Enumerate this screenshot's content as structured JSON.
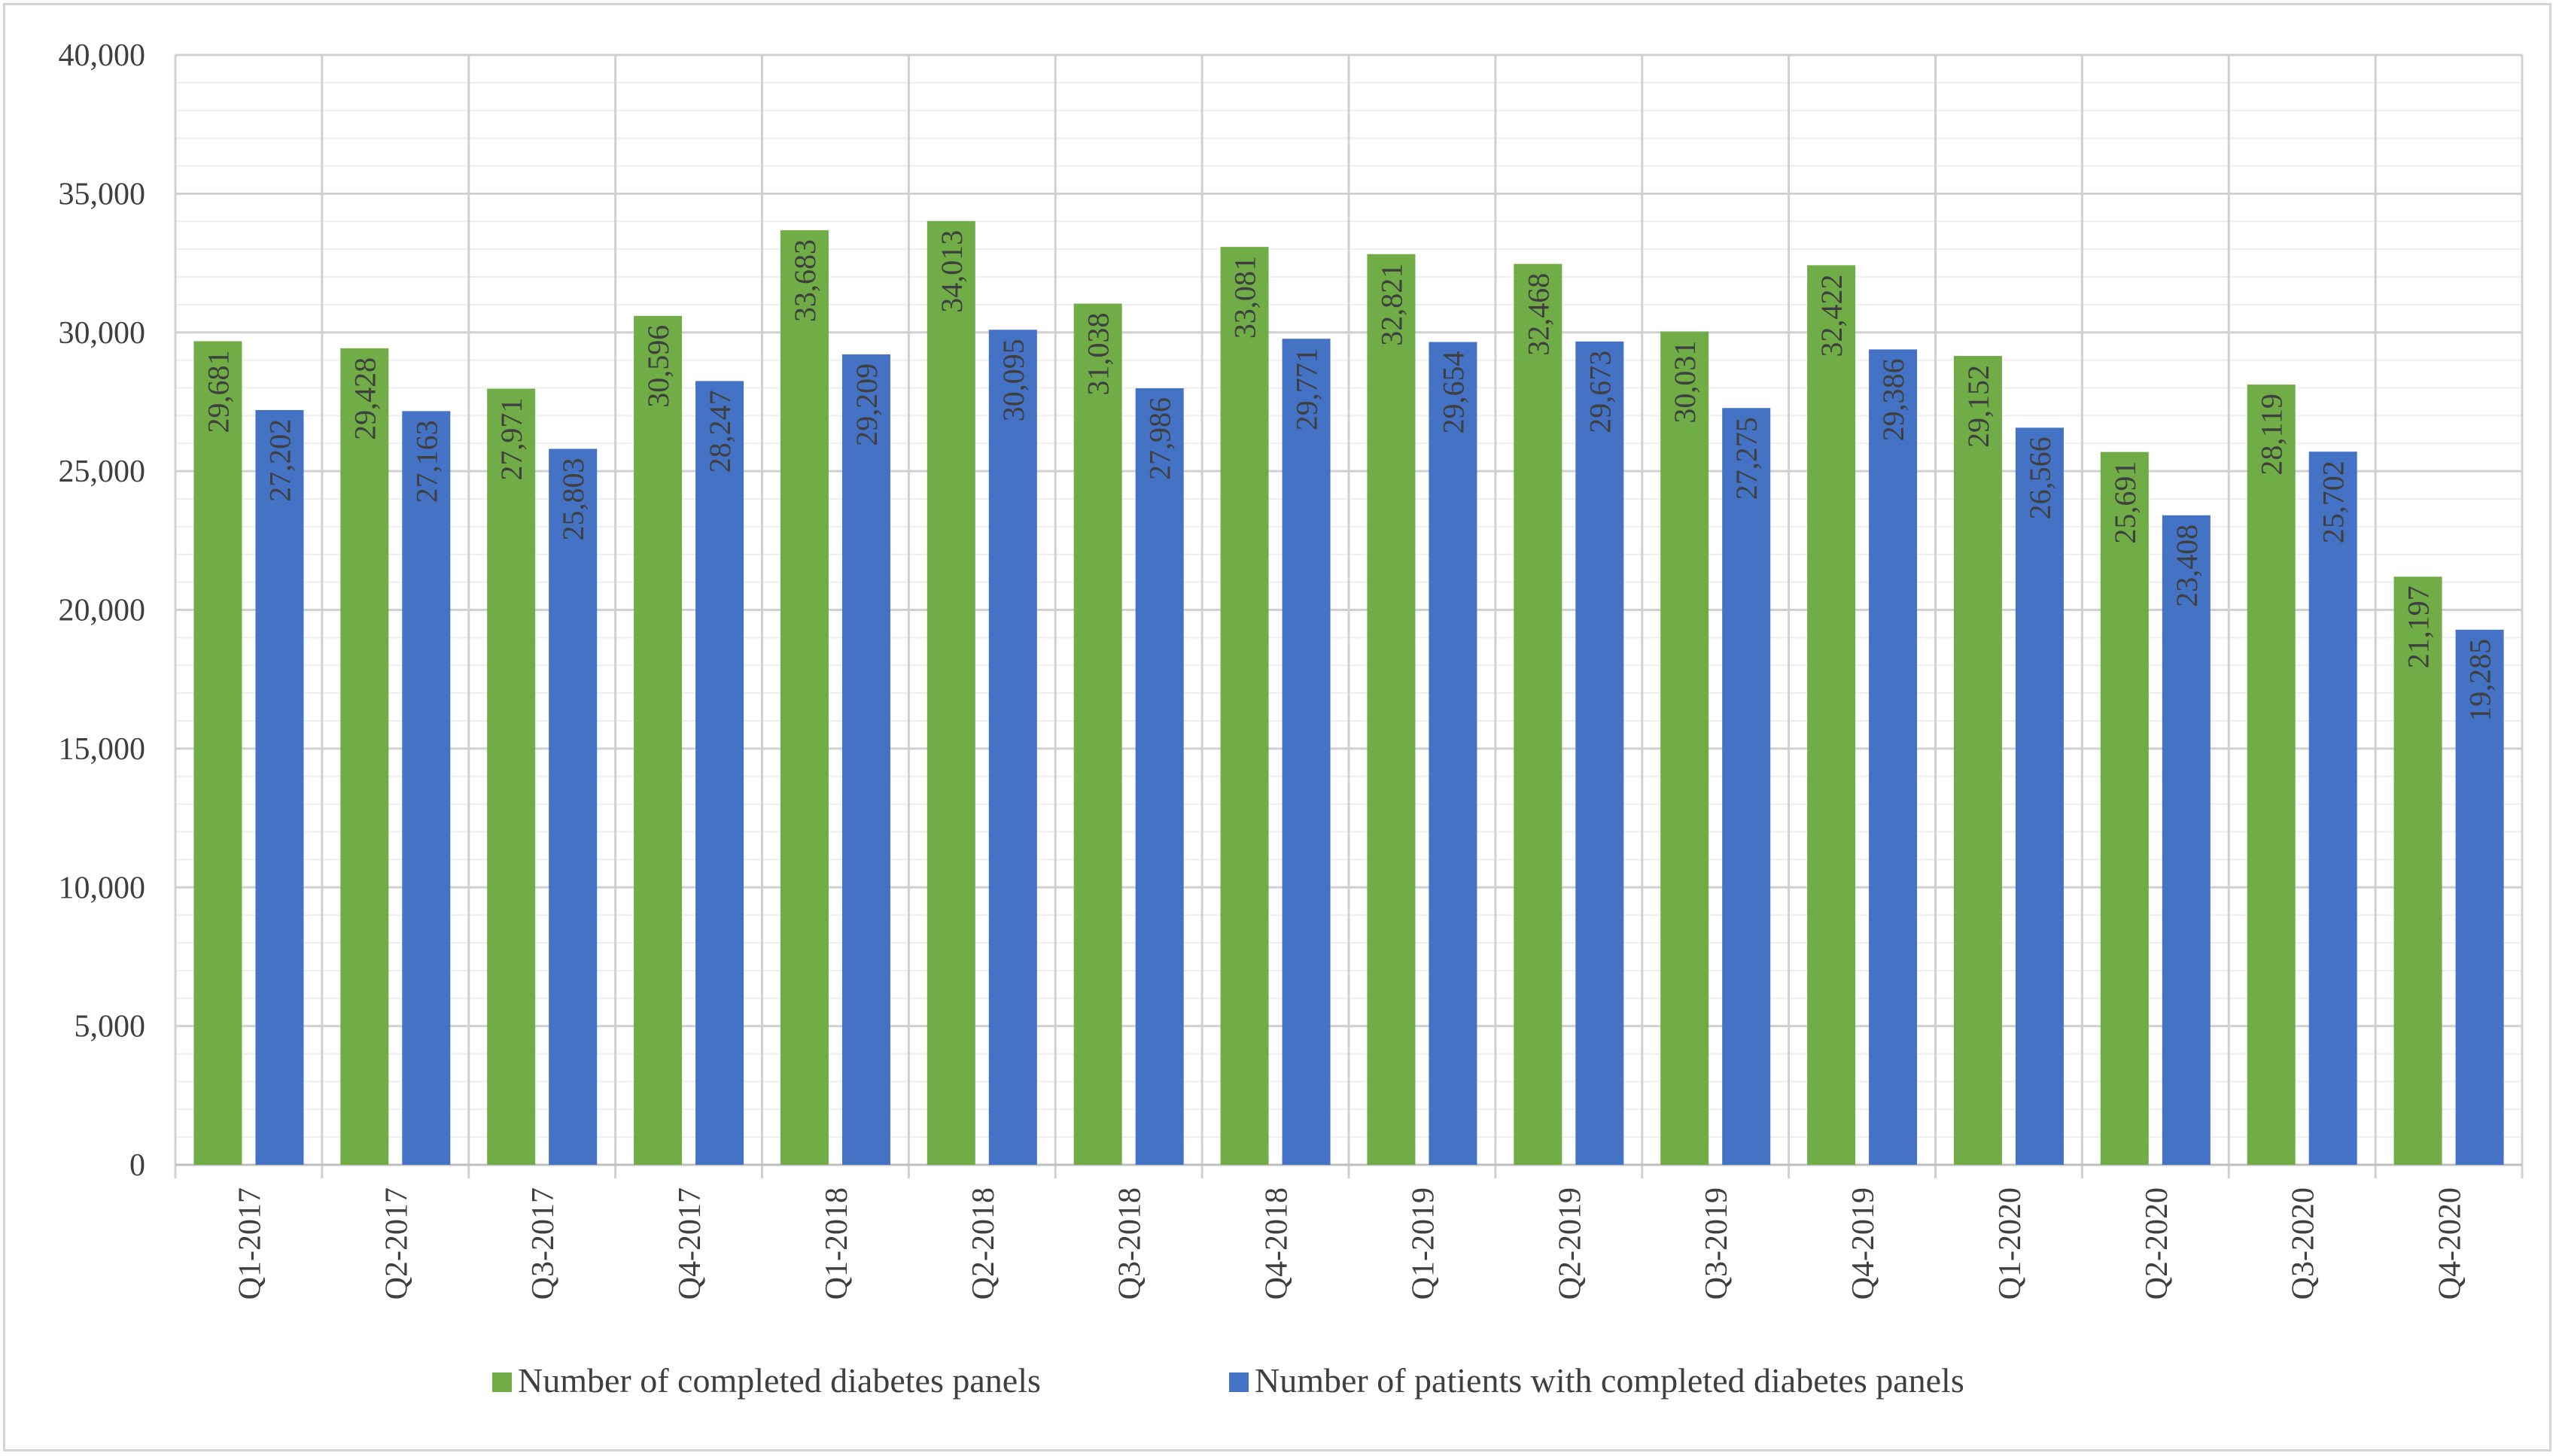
{
  "chart_data": {
    "type": "bar",
    "title": "",
    "xlabel": "",
    "ylabel": "",
    "ylim": [
      0,
      40000
    ],
    "ytick_step": 5000,
    "ytick_labels": [
      "0",
      "5,000",
      "10,000",
      "15,000",
      "20,000",
      "25,000",
      "30,000",
      "35,000",
      "40,000"
    ],
    "grid": true,
    "legend_position": "bottom",
    "categories": [
      "Q1-2017",
      "Q2-2017",
      "Q3-2017",
      "Q4-2017",
      "Q1-2018",
      "Q2-2018",
      "Q3-2018",
      "Q4-2018",
      "Q1-2019",
      "Q2-2019",
      "Q3-2019",
      "Q4-2019",
      "Q1-2020",
      "Q2-2020",
      "Q3-2020",
      "Q4-2020"
    ],
    "series": [
      {
        "name": "Number of completed diabetes panels",
        "color": "#70ad47",
        "values": [
          29681,
          29428,
          27971,
          30596,
          33683,
          34013,
          31038,
          33081,
          32821,
          32468,
          30031,
          32422,
          29152,
          25691,
          28119,
          21197
        ]
      },
      {
        "name": "Number of patients with completed diabetes panels",
        "color": "#4472c4",
        "values": [
          27202,
          27163,
          25803,
          28247,
          29209,
          30095,
          27986,
          29771,
          29654,
          29673,
          27275,
          29386,
          26566,
          23408,
          25702,
          19285
        ]
      }
    ]
  }
}
